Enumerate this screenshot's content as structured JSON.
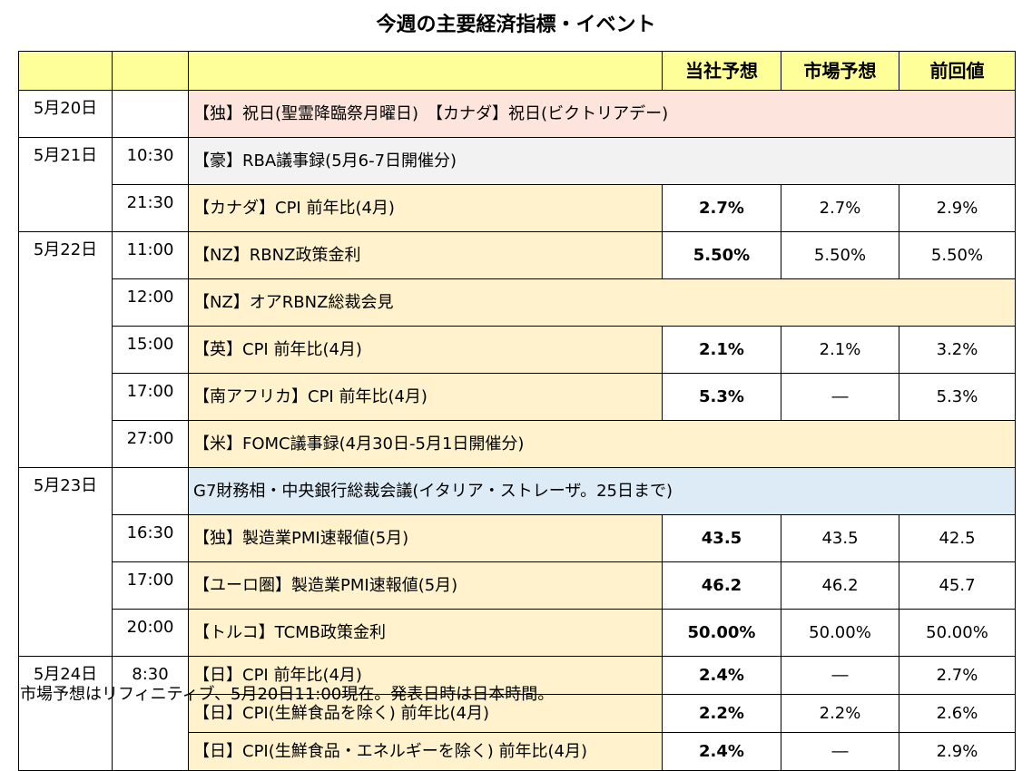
{
  "title": "今週の主要経済指標・イベント",
  "columns": {
    "date": "",
    "time": "",
    "event": "",
    "forecast": "当社予想",
    "market": "市場予想",
    "previous": "前回値"
  },
  "rows": [
    {
      "date": "5月20日",
      "time": "",
      "event": "【独】祝日(聖霊降臨祭月曜日)　【カナダ】祝日(ビクトリアデー)",
      "forecast": "",
      "market": "",
      "previous": ""
    },
    {
      "date": "5月21日",
      "time": "10:30",
      "event": "【豪】RBA議事録(5月6-7日開催分)",
      "forecast": "",
      "market": "",
      "previous": ""
    },
    {
      "date": "",
      "time": "21:30",
      "event": "【カナダ】CPI 前年比(4月)",
      "forecast": "2.7%",
      "market": "2.7%",
      "previous": "2.9%"
    },
    {
      "date": "5月22日",
      "time": "11:00",
      "event": "【NZ】RBNZ政策金利",
      "forecast": "5.50%",
      "market": "5.50%",
      "previous": "5.50%"
    },
    {
      "date": "",
      "time": "12:00",
      "event": "【NZ】オアRBNZ総裁会見",
      "forecast": "",
      "market": "",
      "previous": ""
    },
    {
      "date": "",
      "time": "15:00",
      "event": "【英】CPI 前年比(4月)",
      "forecast": "2.1%",
      "market": "2.1%",
      "previous": "3.2%"
    },
    {
      "date": "",
      "time": "17:00",
      "event": "【南アフリカ】CPI 前年比(4月)",
      "forecast": "5.3%",
      "market": "―",
      "previous": "5.3%"
    },
    {
      "date": "",
      "time": "27:00",
      "event": "【米】FOMC議事録(4月30日-5月1日開催分)",
      "forecast": "",
      "market": "",
      "previous": ""
    },
    {
      "date": "5月23日",
      "time": "",
      "event": "G7財務相・中央銀行総裁会議(イタリア・ストレーザ。25日まで)",
      "forecast": "",
      "market": "",
      "previous": ""
    },
    {
      "date": "",
      "time": "16:30",
      "event": "【独】製造業PMI速報値(5月)",
      "forecast": "43.5",
      "market": "43.5",
      "previous": "42.5"
    },
    {
      "date": "",
      "time": "17:00",
      "event": "【ユーロ圏】製造業PMI速報値(5月)",
      "forecast": "46.2",
      "market": "46.2",
      "previous": "45.7"
    },
    {
      "date": "",
      "time": "20:00",
      "event": "【トルコ】TCMB政策金利",
      "forecast": "50.00%",
      "market": "50.00%",
      "previous": "50.00%"
    },
    {
      "date": "5月24日",
      "time": "8:30",
      "event": "【日】CPI 前年比(4月)",
      "forecast": "2.4%",
      "market": "―",
      "previous": "2.7%"
    },
    {
      "date": "",
      "time": "",
      "event": "【日】CPI(生鮮食品を除く) 前年比(4月)",
      "forecast": "2.2%",
      "market": "2.2%",
      "previous": "2.6%"
    },
    {
      "date": "",
      "time": "",
      "event": "【日】CPI(生鮮食品・エネルギーを除く) 前年比(4月)",
      "forecast": "2.4%",
      "market": "―",
      "previous": "2.9%"
    }
  ],
  "footnote": "市場予想はリフィニティブ、5月20日11:00現在。発表日時は日本時間。",
  "colors": {
    "header": "#ffff99",
    "holiday": "#fde4dc",
    "gray": "#f2f2f2",
    "cream": "#fff2cc",
    "blue": "#ddebf7"
  }
}
